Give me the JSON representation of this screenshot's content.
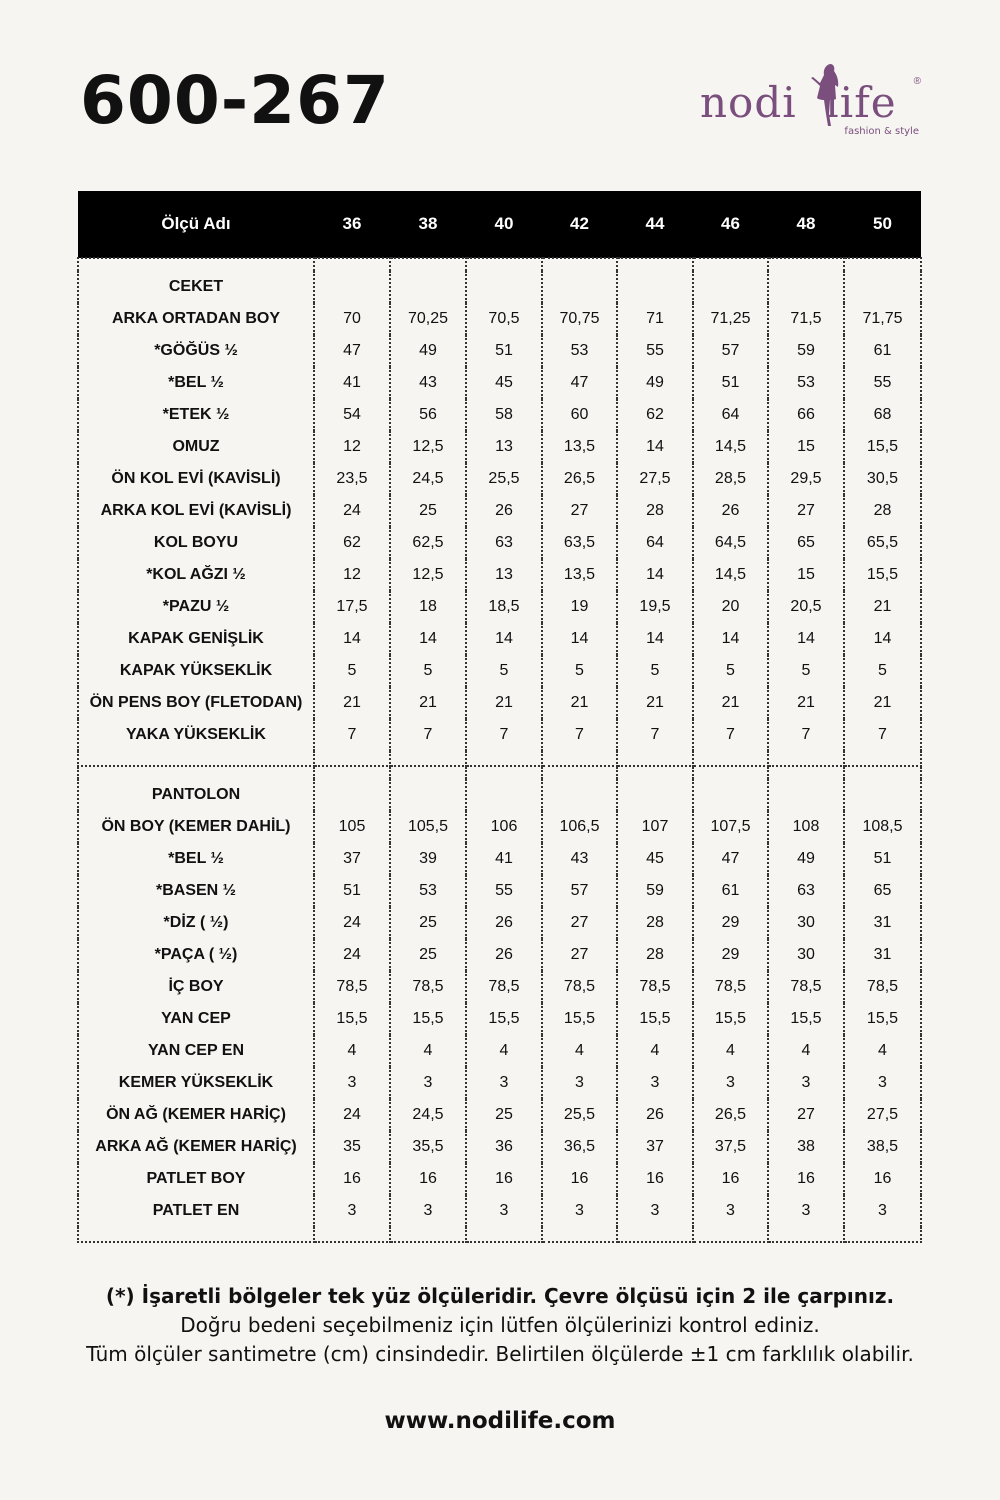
{
  "product_code": "600-267",
  "logo": {
    "text": "nodi life",
    "tagline": "fashion & style",
    "registered": "®",
    "color": "#7a4f7d"
  },
  "table": {
    "header": [
      "Ölçü Adı",
      "36",
      "38",
      "40",
      "42",
      "44",
      "46",
      "48",
      "50"
    ],
    "sections": [
      {
        "title": "CEKET",
        "rows": [
          [
            "ARKA ORTADAN BOY",
            "70",
            "70,25",
            "70,5",
            "70,75",
            "71",
            "71,25",
            "71,5",
            "71,75"
          ],
          [
            "*GÖĞÜS ½",
            "47",
            "49",
            "51",
            "53",
            "55",
            "57",
            "59",
            "61"
          ],
          [
            "*BEL ½",
            "41",
            "43",
            "45",
            "47",
            "49",
            "51",
            "53",
            "55"
          ],
          [
            "*ETEK ½",
            "54",
            "56",
            "58",
            "60",
            "62",
            "64",
            "66",
            "68"
          ],
          [
            "OMUZ",
            "12",
            "12,5",
            "13",
            "13,5",
            "14",
            "14,5",
            "15",
            "15,5"
          ],
          [
            "ÖN KOL EVİ (KAVİSLİ)",
            "23,5",
            "24,5",
            "25,5",
            "26,5",
            "27,5",
            "28,5",
            "29,5",
            "30,5"
          ],
          [
            "ARKA KOL EVİ (KAVİSLİ)",
            "24",
            "25",
            "26",
            "27",
            "28",
            "26",
            "27",
            "28"
          ],
          [
            "KOL BOYU",
            "62",
            "62,5",
            "63",
            "63,5",
            "64",
            "64,5",
            "65",
            "65,5"
          ],
          [
            "*KOL AĞZI ½",
            "12",
            "12,5",
            "13",
            "13,5",
            "14",
            "14,5",
            "15",
            "15,5"
          ],
          [
            "*PAZU ½",
            "17,5",
            "18",
            "18,5",
            "19",
            "19,5",
            "20",
            "20,5",
            "21"
          ],
          [
            "KAPAK GENİŞLİK",
            "14",
            "14",
            "14",
            "14",
            "14",
            "14",
            "14",
            "14"
          ],
          [
            "KAPAK YÜKSEKLİK",
            "5",
            "5",
            "5",
            "5",
            "5",
            "5",
            "5",
            "5"
          ],
          [
            "ÖN PENS BOY (FLETODAN)",
            "21",
            "21",
            "21",
            "21",
            "21",
            "21",
            "21",
            "21"
          ],
          [
            "YAKA YÜKSEKLİK",
            "7",
            "7",
            "7",
            "7",
            "7",
            "7",
            "7",
            "7"
          ]
        ]
      },
      {
        "title": "PANTOLON",
        "rows": [
          [
            "ÖN BOY (KEMER DAHİL)",
            "105",
            "105,5",
            "106",
            "106,5",
            "107",
            "107,5",
            "108",
            "108,5"
          ],
          [
            "*BEL ½",
            "37",
            "39",
            "41",
            "43",
            "45",
            "47",
            "49",
            "51"
          ],
          [
            "*BASEN  ½",
            "51",
            "53",
            "55",
            "57",
            "59",
            "61",
            "63",
            "65"
          ],
          [
            "*DİZ ( ½)",
            "24",
            "25",
            "26",
            "27",
            "28",
            "29",
            "30",
            "31"
          ],
          [
            "*PAÇA ( ½)",
            "24",
            "25",
            "26",
            "27",
            "28",
            "29",
            "30",
            "31"
          ],
          [
            "İÇ BOY",
            "78,5",
            "78,5",
            "78,5",
            "78,5",
            "78,5",
            "78,5",
            "78,5",
            "78,5"
          ],
          [
            "YAN CEP",
            "15,5",
            "15,5",
            "15,5",
            "15,5",
            "15,5",
            "15,5",
            "15,5",
            "15,5"
          ],
          [
            "YAN CEP EN",
            "4",
            "4",
            "4",
            "4",
            "4",
            "4",
            "4",
            "4"
          ],
          [
            "KEMER YÜKSEKLİK",
            "3",
            "3",
            "3",
            "3",
            "3",
            "3",
            "3",
            "3"
          ],
          [
            "ÖN AĞ (KEMER HARİÇ)",
            "24",
            "24,5",
            "25",
            "25,5",
            "26",
            "26,5",
            "27",
            "27,5"
          ],
          [
            "ARKA AĞ (KEMER HARİÇ)",
            "35",
            "35,5",
            "36",
            "36,5",
            "37",
            "37,5",
            "38",
            "38,5"
          ],
          [
            "PATLET BOY",
            "16",
            "16",
            "16",
            "16",
            "16",
            "16",
            "16",
            "16"
          ],
          [
            "PATLET EN",
            "3",
            "3",
            "3",
            "3",
            "3",
            "3",
            "3",
            "3"
          ]
        ]
      }
    ]
  },
  "notes": {
    "line1": "(*) İşaretli bölgeler tek yüz ölçüleridir. Çevre ölçüsü için 2 ile çarpınız.",
    "line2": "Doğru bedeni seçebilmeniz için lütfen ölçülerinizi kontrol ediniz.",
    "line3": "Tüm ölçüler santimetre (cm) cinsindedir. Belirtilen ölçülerde ±1 cm farklılık olabilir."
  },
  "website": "www.nodilife.com"
}
